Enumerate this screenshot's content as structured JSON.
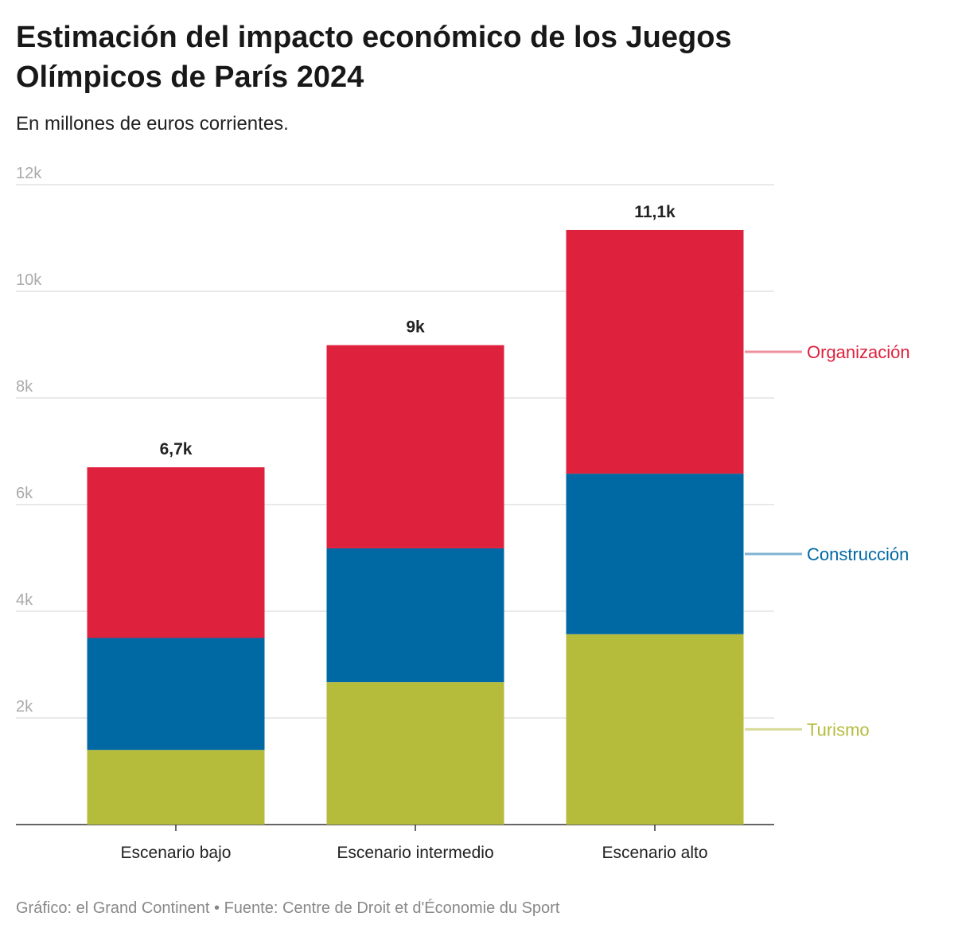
{
  "title": "Estimación del impacto económico de los Juegos Olímpicos de París 2024",
  "subtitle": "En millones de euros corrientes.",
  "footer": "Gráfico: el Grand Continent • Fuente: Centre de Droit et d'Économie du Sport",
  "chart_data": {
    "type": "bar",
    "stacked": true,
    "categories": [
      "Escenario bajo",
      "Escenario intermedio",
      "Escenario alto"
    ],
    "series": [
      {
        "name": "Turismo",
        "color": "#b5bb3b",
        "values": [
          1400,
          2670,
          3570
        ]
      },
      {
        "name": "Construcción",
        "color": "#0069a3",
        "values": [
          2100,
          2510,
          3010
        ]
      },
      {
        "name": "Organización",
        "color": "#de213d",
        "values": [
          3200,
          3810,
          4570
        ]
      }
    ],
    "totals_labels": [
      "6,7k",
      "9k",
      "11,1k"
    ],
    "yticks": [
      {
        "v": 2000,
        "l": "2k"
      },
      {
        "v": 4000,
        "l": "4k"
      },
      {
        "v": 6000,
        "l": "6k"
      },
      {
        "v": 8000,
        "l": "8k"
      },
      {
        "v": 10000,
        "l": "10k"
      },
      {
        "v": 12000,
        "l": "12k"
      }
    ],
    "ylim": [
      0,
      12000
    ],
    "grid": true,
    "legend": "right, inline labels"
  }
}
